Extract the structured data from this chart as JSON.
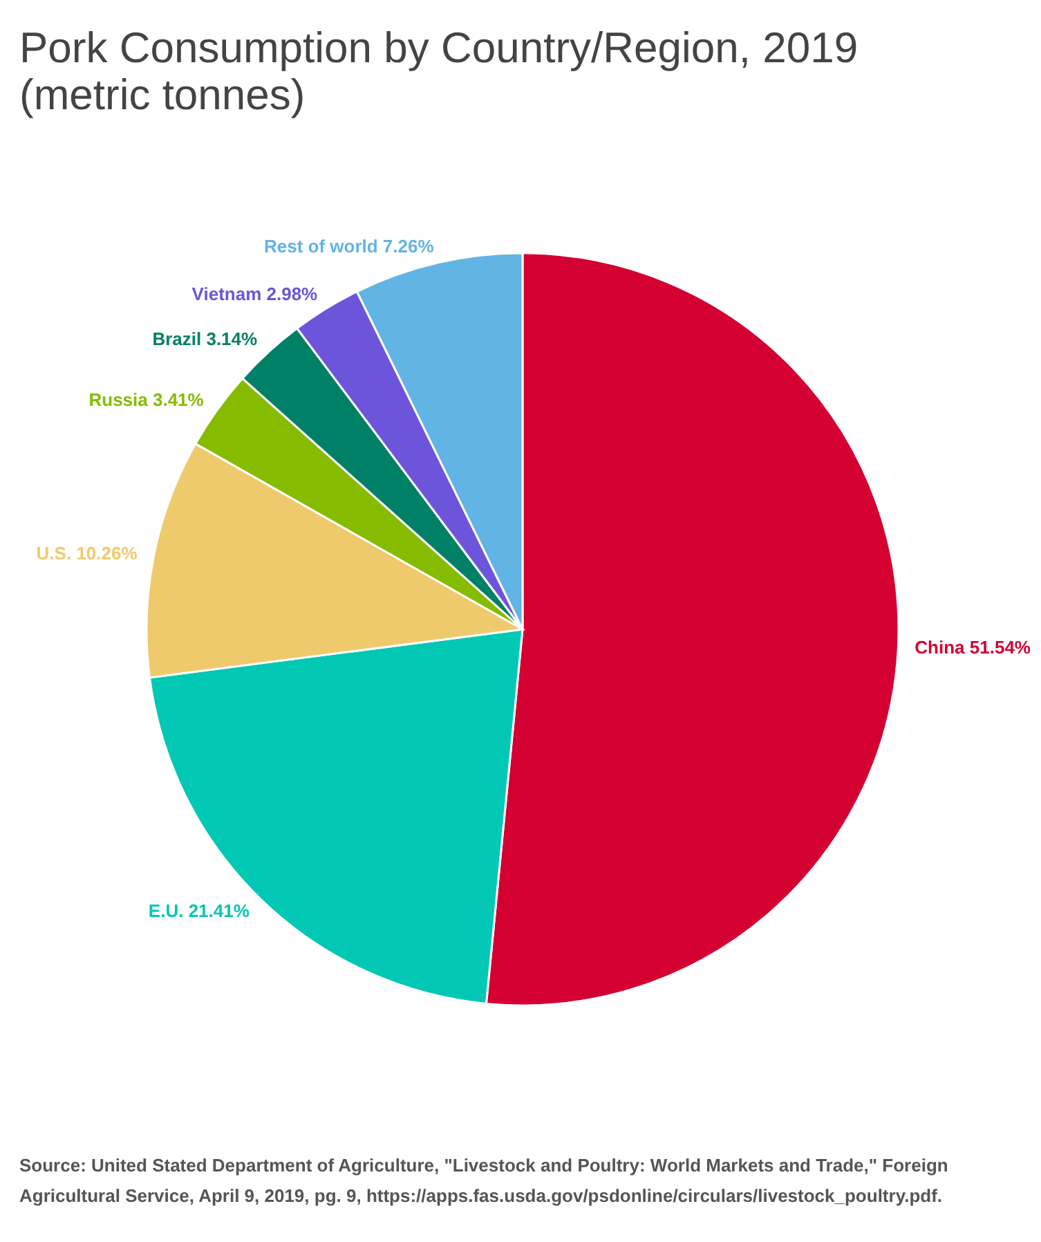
{
  "chart_data": {
    "type": "pie",
    "title": "Pork Consumption by Country/Region, 2019\n(metric tonnes)",
    "categories": [
      "China",
      "E.U.",
      "U.S.",
      "Russia",
      "Brazil",
      "Vietnam",
      "Rest of world"
    ],
    "values": [
      51.54,
      21.41,
      10.26,
      3.41,
      3.14,
      2.98,
      7.26
    ],
    "value_labels": [
      "51.54%",
      "21.41%",
      "10.26%",
      "3.41%",
      "3.14%",
      "2.98%",
      "7.26%"
    ],
    "colors": [
      "#d30031",
      "#00c8b4",
      "#efca6c",
      "#85bc00",
      "#008066",
      "#6d55db",
      "#62b4e4"
    ],
    "annotations": [
      "Source: United Stated Department of Agriculture, \"Livestock and Poultry: World Markets and Trade,\" Foreign Agricultural Service, April 9, 2019, pg. 9,  https://apps.fas.usda.gov/psdonline/circulars/livestock_poultry.pdf."
    ]
  }
}
